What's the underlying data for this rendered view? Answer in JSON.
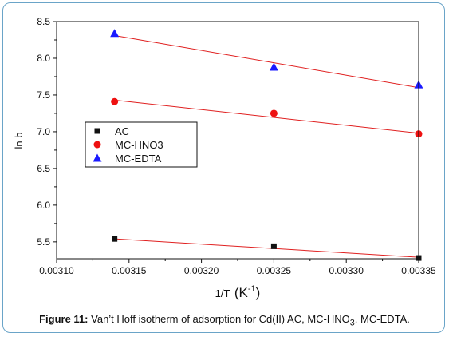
{
  "chart_data": {
    "type": "scatter",
    "xlabel_main": "1/T",
    "xlabel_unit_base": "K",
    "xlabel_unit_sup": "-1",
    "ylabel": "ln b",
    "xlim": [
      0.0031,
      0.00335
    ],
    "ylim": [
      5.27,
      8.5
    ],
    "x_ticks": [
      "0.00310",
      "0.00315",
      "0.00320",
      "0.00325",
      "0.00330",
      "0.00335"
    ],
    "y_ticks": [
      "5.5",
      "6.0",
      "6.5",
      "7.0",
      "7.5",
      "8.0",
      "8.5"
    ],
    "legend_position": "center-left",
    "series": [
      {
        "name": "AC",
        "marker": "square",
        "color": "#111111",
        "fit_color": "#e02020",
        "x": [
          0.00314,
          0.00325,
          0.00335
        ],
        "y": [
          5.54,
          5.44,
          5.28
        ],
        "fit": [
          [
            0.00314,
            5.54
          ],
          [
            0.00335,
            5.29
          ]
        ]
      },
      {
        "name": "MC-HNO3",
        "marker": "circle",
        "color": "#ee1111",
        "fit_color": "#e02020",
        "x": [
          0.00314,
          0.00325,
          0.00335
        ],
        "y": [
          7.41,
          7.25,
          6.97
        ],
        "fit": [
          [
            0.00314,
            7.43
          ],
          [
            0.00335,
            6.98
          ]
        ]
      },
      {
        "name": "MC-EDTA",
        "marker": "triangle",
        "color": "#1a1aff",
        "fit_color": "#e02020",
        "x": [
          0.00314,
          0.00325,
          0.00335
        ],
        "y": [
          8.34,
          7.88,
          7.64
        ],
        "fit": [
          [
            0.00314,
            8.31
          ],
          [
            0.00335,
            7.6
          ]
        ]
      }
    ]
  },
  "caption": {
    "label": "Figure 11:",
    "text_before": " Van’t Hoff isotherm of adsorption for Cd(II) AC, MC-HNO",
    "subscript": "3",
    "text_after": ", MC-EDTA."
  }
}
